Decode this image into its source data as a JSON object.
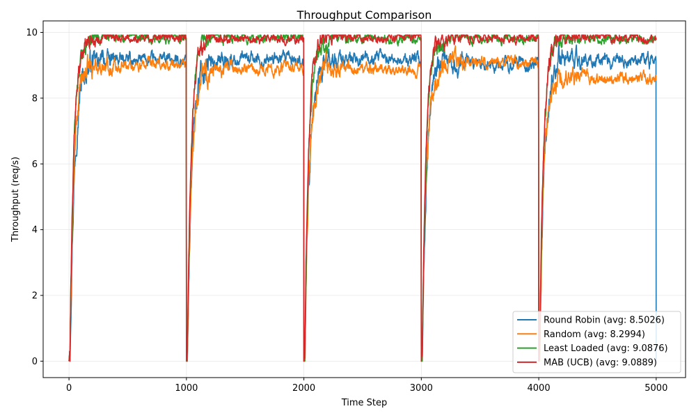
{
  "chart_data": {
    "type": "line",
    "title": "Throughput Comparison",
    "xlabel": "Time Step",
    "ylabel": "Throughput (req/s)",
    "xlim": [
      -220,
      5250
    ],
    "ylim": [
      -0.5,
      10.35
    ],
    "xticks": [
      0,
      1000,
      2000,
      3000,
      4000,
      5000
    ],
    "yticks": [
      0,
      2,
      4,
      6,
      8,
      10
    ],
    "grid": true,
    "legend_position": "lower-right",
    "cycle_length": 1000,
    "series": [
      {
        "name": "Round Robin (avg: 8.5026)",
        "color": "#1f77b4",
        "plateaus": [
          9.15,
          9.17,
          9.17,
          9.05,
          9.17,
          9.13
        ],
        "rise_rate": 0.026,
        "noise": 0.1
      },
      {
        "name": "Random (avg: 8.2994)",
        "color": "#ff7f0e",
        "plateaus": [
          9.0,
          8.92,
          8.88,
          9.1,
          8.62
        ],
        "rise_rate": 0.028,
        "noise": 0.09
      },
      {
        "name": "Least Loaded (avg: 9.0876)",
        "color": "#2ca02c",
        "plateaus": [
          9.82,
          9.82,
          9.82,
          9.82,
          9.82
        ],
        "rise_rate": 0.03,
        "noise": 0.07
      },
      {
        "name": "MAB (UCB) (avg: 9.0889)",
        "color": "#d62728",
        "plateaus": [
          9.83,
          9.83,
          9.83,
          9.83,
          9.83
        ],
        "rise_rate": 0.031,
        "noise": 0.07
      }
    ]
  }
}
